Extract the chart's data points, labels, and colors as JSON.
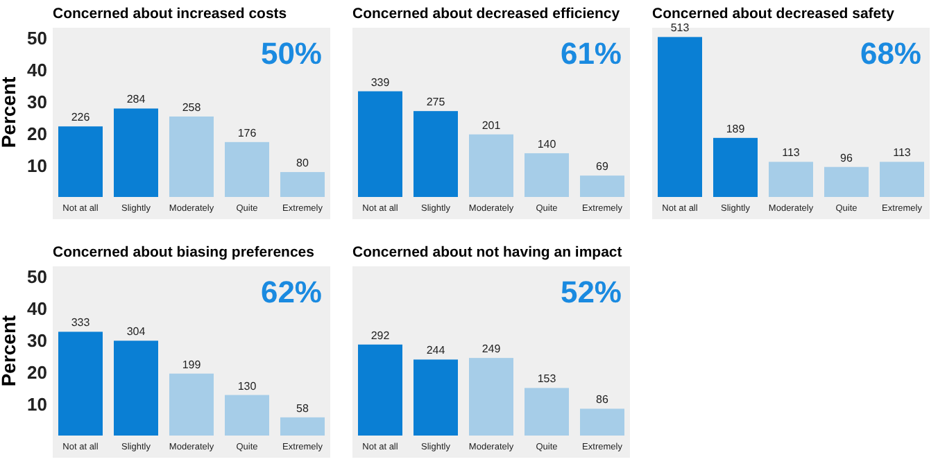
{
  "chart_data": [
    {
      "type": "bar",
      "title": "Concerned about increased costs",
      "ylabel": "Percent",
      "categories": [
        "Not at all",
        "Slightly",
        "Moderately",
        "Quite",
        "Extremely"
      ],
      "values": [
        22.1,
        27.7,
        25.2,
        17.2,
        7.8
      ],
      "colors": [
        "#0a7fd4",
        "#0a7fd4",
        "#a6cde8",
        "#a6cde8",
        "#a6cde8"
      ],
      "ylim": [
        0,
        53
      ],
      "yticks": [
        10,
        20,
        30,
        40,
        50
      ],
      "annotations": [
        "50%",
        {
          "text": "226",
          "x": "Not at all",
          "y": 22.1
        },
        {
          "text": "284",
          "x": "Slightly",
          "y": 27.7
        },
        {
          "text": "258",
          "x": "Moderately",
          "y": 25.2
        },
        {
          "text": "176",
          "x": "Quite",
          "y": 17.2
        },
        {
          "text": "80",
          "x": "Extremely",
          "y": 7.8
        }
      ]
    },
    {
      "type": "bar",
      "title": "Concerned about decreased efficiency",
      "categories": [
        "Not at all",
        "Slightly",
        "Moderately",
        "Quite",
        "Extremely"
      ],
      "values": [
        33.1,
        26.9,
        19.6,
        13.7,
        6.7
      ],
      "colors": [
        "#0a7fd4",
        "#0a7fd4",
        "#a6cde8",
        "#a6cde8",
        "#a6cde8"
      ],
      "ylim": [
        0,
        53
      ],
      "tick_labels": "x",
      "annotations": [
        "61%",
        {
          "text": "339",
          "x": "Not at all",
          "y": 33.1
        },
        {
          "text": "275",
          "x": "Slightly",
          "y": 26.9
        },
        {
          "text": "201",
          "x": "Moderately",
          "y": 19.6
        },
        {
          "text": "140",
          "x": "Quite",
          "y": 13.7
        },
        {
          "text": "69",
          "x": "Extremely",
          "y": 6.7
        }
      ]
    },
    {
      "type": "bar",
      "title": "Concerned about decreased safety",
      "categories": [
        "Not at all",
        "Slightly",
        "Moderately",
        "Quite",
        "Extremely"
      ],
      "values": [
        50.1,
        18.5,
        11.0,
        9.4,
        11.0
      ],
      "colors": [
        "#0a7fd4",
        "#0a7fd4",
        "#a6cde8",
        "#a6cde8",
        "#a6cde8"
      ],
      "ylim": [
        0,
        53
      ],
      "tick_labels": "x",
      "annotations": [
        "68%",
        {
          "text": "513",
          "x": "Not at all",
          "y": 50.1
        },
        {
          "text": "189",
          "x": "Slightly",
          "y": 18.5
        },
        {
          "text": "113",
          "x": "Moderately",
          "y": 11.0
        },
        {
          "text": "96",
          "x": "Quite",
          "y": 9.4
        },
        {
          "text": "113",
          "x": "Extremely",
          "y": 11.0
        }
      ]
    },
    {
      "type": "bar",
      "title": "Concerned about biasing preferences",
      "ylabel": "Percent",
      "categories": [
        "Not at all",
        "Slightly",
        "Moderately",
        "Quite",
        "Extremely"
      ],
      "values": [
        32.5,
        29.7,
        19.4,
        12.7,
        5.7
      ],
      "colors": [
        "#0a7fd4",
        "#0a7fd4",
        "#a6cde8",
        "#a6cde8",
        "#a6cde8"
      ],
      "ylim": [
        0,
        53
      ],
      "yticks": [
        10,
        20,
        30,
        40,
        50
      ],
      "annotations": [
        "62%",
        {
          "text": "333",
          "x": "Not at all",
          "y": 32.5
        },
        {
          "text": "304",
          "x": "Slightly",
          "y": 29.7
        },
        {
          "text": "199",
          "x": "Moderately",
          "y": 19.4
        },
        {
          "text": "130",
          "x": "Quite",
          "y": 12.7
        },
        {
          "text": "58",
          "x": "Extremely",
          "y": 5.7
        }
      ]
    },
    {
      "type": "bar",
      "title": "Concerned about not having an impact",
      "categories": [
        "Not at all",
        "Slightly",
        "Moderately",
        "Quite",
        "Extremely"
      ],
      "values": [
        28.5,
        23.8,
        24.3,
        14.9,
        8.4
      ],
      "colors": [
        "#0a7fd4",
        "#0a7fd4",
        "#a6cde8",
        "#a6cde8",
        "#a6cde8"
      ],
      "ylim": [
        0,
        53
      ],
      "tick_labels": "x",
      "annotations": [
        "52%",
        {
          "text": "292",
          "x": "Not at all",
          "y": 28.5
        },
        {
          "text": "244",
          "x": "Slightly",
          "y": 23.8
        },
        {
          "text": "249",
          "x": "Moderately",
          "y": 24.3
        },
        {
          "text": "153",
          "x": "Quite",
          "y": 14.9
        },
        {
          "text": "86",
          "x": "Extremely",
          "y": 8.4
        }
      ]
    }
  ]
}
